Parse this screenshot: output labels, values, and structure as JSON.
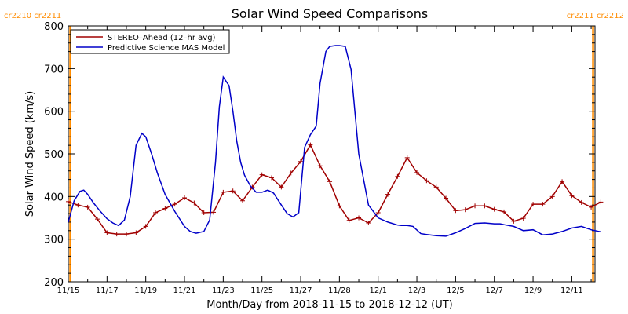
{
  "chart_data": {
    "type": "line",
    "title": "Solar Wind Speed Comparisons",
    "xlabel": "Month/Day from 2018-11-15 to 2018-12-12 (UT)",
    "ylabel": "Solar Wind Speed (km/s)",
    "ylim": [
      200,
      800
    ],
    "xlim": [
      0,
      27.2
    ],
    "x_ticks": [
      {
        "x": 0,
        "label": "11/15"
      },
      {
        "x": 2,
        "label": "11/17"
      },
      {
        "x": 4,
        "label": "11/19"
      },
      {
        "x": 6,
        "label": "11/21"
      },
      {
        "x": 8,
        "label": "11/23"
      },
      {
        "x": 10,
        "label": "11/25"
      },
      {
        "x": 12,
        "label": "11/27"
      },
      {
        "x": 14,
        "label": "11/28"
      },
      {
        "x": 16,
        "label": "12/1"
      },
      {
        "x": 18,
        "label": "12/3"
      },
      {
        "x": 20,
        "label": "12/5"
      },
      {
        "x": 22,
        "label": "12/7"
      },
      {
        "x": 24,
        "label": "12/9"
      },
      {
        "x": 26,
        "label": "12/11"
      }
    ],
    "y_ticks": [
      200,
      300,
      400,
      500,
      600,
      700,
      800
    ],
    "carrington_left": "cr2210 cr2211",
    "carrington_right": "cr2211 cr2212",
    "carrington_lines": [
      0.1,
      27.1
    ],
    "legend_position": "top-left",
    "series": [
      {
        "name": "STEREO–Ahead (12–hr avg)",
        "color": "#a00000",
        "markers": true,
        "x": [
          0,
          0.5,
          1,
          1.5,
          2,
          2.5,
          3,
          3.5,
          4,
          4.5,
          5,
          5.5,
          6,
          6.5,
          7,
          7.5,
          8,
          8.5,
          9,
          9.5,
          10,
          10.5,
          11,
          11.5,
          12,
          12.5,
          13,
          13.5,
          14,
          14.5,
          15,
          15.5,
          16,
          16.5,
          17,
          17.5,
          18,
          18.5,
          19,
          19.5,
          20,
          20.5,
          21,
          21.5,
          22,
          22.5,
          23,
          23.5,
          24,
          24.5,
          25,
          25.5,
          26,
          26.5,
          27,
          27.5
        ],
        "values": [
          388,
          380,
          375,
          347,
          315,
          312,
          312,
          315,
          330,
          362,
          372,
          382,
          397,
          385,
          362,
          363,
          410,
          413,
          390,
          422,
          451,
          444,
          422,
          455,
          482,
          521,
          472,
          435,
          378,
          344,
          350,
          338,
          362,
          405,
          447,
          491,
          456,
          437,
          422,
          396,
          367,
          369,
          378,
          378,
          370,
          364,
          342,
          349,
          382,
          382,
          400,
          435,
          402,
          386,
          375,
          387
        ]
      },
      {
        "name": "Predictive Science MAS Model",
        "color": "#0000c8",
        "markers": false,
        "x": [
          0,
          0.3,
          0.6,
          0.8,
          1,
          1.3,
          1.6,
          2,
          2.3,
          2.6,
          2.9,
          3.2,
          3.5,
          3.8,
          4,
          4.3,
          4.6,
          5,
          5.5,
          6,
          6.3,
          6.6,
          7,
          7.3,
          7.6,
          7.8,
          8,
          8.3,
          8.5,
          8.7,
          8.9,
          9.1,
          9.4,
          9.7,
          10,
          10.3,
          10.6,
          11,
          11.3,
          11.6,
          11.9,
          12.2,
          12.5,
          12.8,
          13,
          13.3,
          13.5,
          13.8,
          14,
          14.3,
          14.6,
          15,
          15.5,
          16,
          16.5,
          17,
          17.2,
          17.5,
          17.8,
          18.2,
          18.5,
          19,
          19.5,
          20,
          20.5,
          21,
          21.5,
          22,
          22.3,
          22.6,
          23,
          23.5,
          24,
          24.5,
          25,
          25.5,
          26,
          26.5,
          27,
          27.5
        ],
        "values": [
          340,
          390,
          412,
          415,
          405,
          385,
          368,
          348,
          338,
          332,
          345,
          400,
          520,
          548,
          540,
          500,
          455,
          405,
          365,
          330,
          318,
          314,
          318,
          345,
          480,
          610,
          680,
          660,
          600,
          530,
          480,
          450,
          425,
          410,
          410,
          415,
          408,
          380,
          360,
          352,
          362,
          515,
          545,
          565,
          665,
          740,
          752,
          754,
          754,
          752,
          698,
          500,
          380,
          350,
          340,
          333,
          332,
          332,
          330,
          313,
          311,
          308,
          307,
          315,
          325,
          337,
          338,
          336,
          336,
          333,
          330,
          320,
          322,
          310,
          312,
          318,
          326,
          330,
          322,
          317
        ]
      }
    ]
  }
}
